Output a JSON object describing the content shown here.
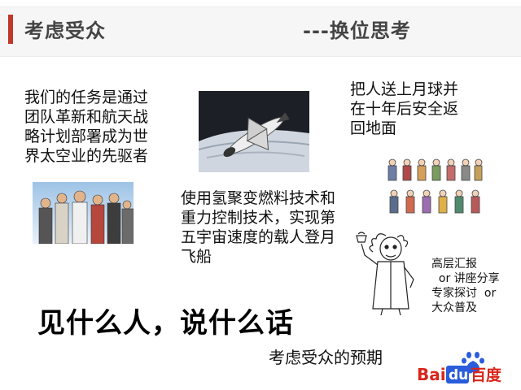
{
  "header": {
    "title_left": "考虑受众",
    "title_right": "---换位思考"
  },
  "mission_text": [
    "我们的任务是通过",
    "团队革新和航天战",
    "略计划部署成为世",
    "界太空业的先驱者"
  ],
  "moon_text": [
    "把人送上月球并",
    "在十年后安全返",
    "回地面"
  ],
  "tech_text": [
    "使用氢聚变燃料技术和",
    "重力控制技术，实现第",
    "五宇宙速度的载人登月",
    "飞船"
  ],
  "audience_text": [
    "高层汇报",
    "  or 讲座分享",
    "专家探讨  or",
    "大众普及"
  ],
  "slogan": "见什么人，说什么话",
  "expectation": "考虑受众的预期",
  "logo": {
    "part1": "Bai",
    "part2": "du",
    "part3": "百度"
  },
  "colors": {
    "accent": "#c0392b",
    "logo_red": "#d9261c",
    "logo_blue": "#2a5cdb"
  },
  "icons": [
    "space-shuttle-image",
    "team-photo-image",
    "people-group-image",
    "professor-cartoon-image",
    "baidu-paw-icon"
  ]
}
